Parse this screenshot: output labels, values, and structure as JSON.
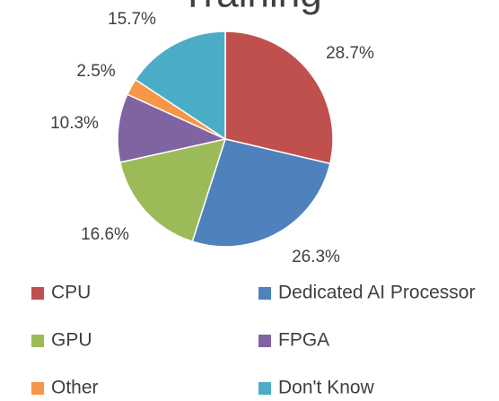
{
  "chart_data": {
    "type": "pie",
    "title": "Training",
    "categories": [
      "CPU",
      "Dedicated AI Processor",
      "GPU",
      "FPGA",
      "Other",
      "Don't Know"
    ],
    "values": [
      28.7,
      26.3,
      16.6,
      10.3,
      2.5,
      15.7
    ],
    "value_labels": [
      "28.7%",
      "26.3%",
      "16.6%",
      "10.3%",
      "2.5%",
      "15.7%"
    ],
    "colors": [
      "#c0504d",
      "#4f81bd",
      "#9bbb59",
      "#8064a2",
      "#f79646",
      "#4bacc6"
    ],
    "legend": "bottom"
  }
}
